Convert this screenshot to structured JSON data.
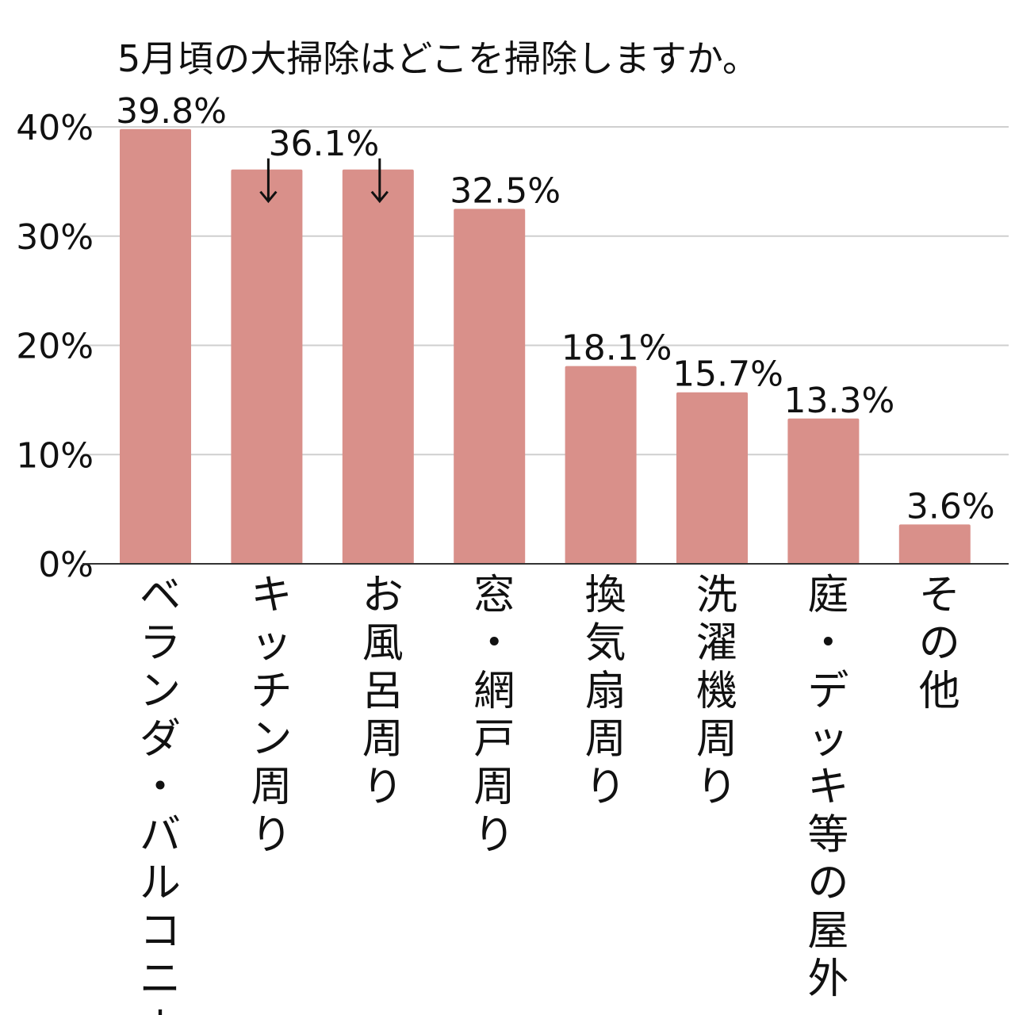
{
  "chart_data": {
    "type": "bar",
    "title": "5月頃の大掃除はどこを掃除しますか。",
    "categories": [
      "ベランダ・バルコニー",
      "キッチン周り",
      "お風呂周り",
      "窓・網戸周り",
      "換気扇周り",
      "洗濯機周り",
      "庭・デッキ等の屋外",
      "その他"
    ],
    "values": [
      39.8,
      36.1,
      36.1,
      32.5,
      18.1,
      15.7,
      13.3,
      3.6
    ],
    "value_labels": [
      "39.8%",
      "36.1%",
      "",
      "32.5%",
      "18.1%",
      "15.7%",
      "13.3%",
      "3.6%"
    ],
    "arrow_markers": [
      false,
      true,
      true,
      false,
      false,
      false,
      false,
      false
    ],
    "yticks": [
      0,
      10,
      20,
      30,
      40
    ],
    "ytick_labels": [
      "0%",
      "10%",
      "20%",
      "30%",
      "40%"
    ],
    "ylim": [
      0,
      40
    ],
    "xlabel": "",
    "ylabel": "",
    "grid": true,
    "legend": "none",
    "colors": {
      "bar": "#d9908a",
      "grid": "#cfcfcf",
      "axis": "#333333",
      "text": "#111111"
    }
  }
}
